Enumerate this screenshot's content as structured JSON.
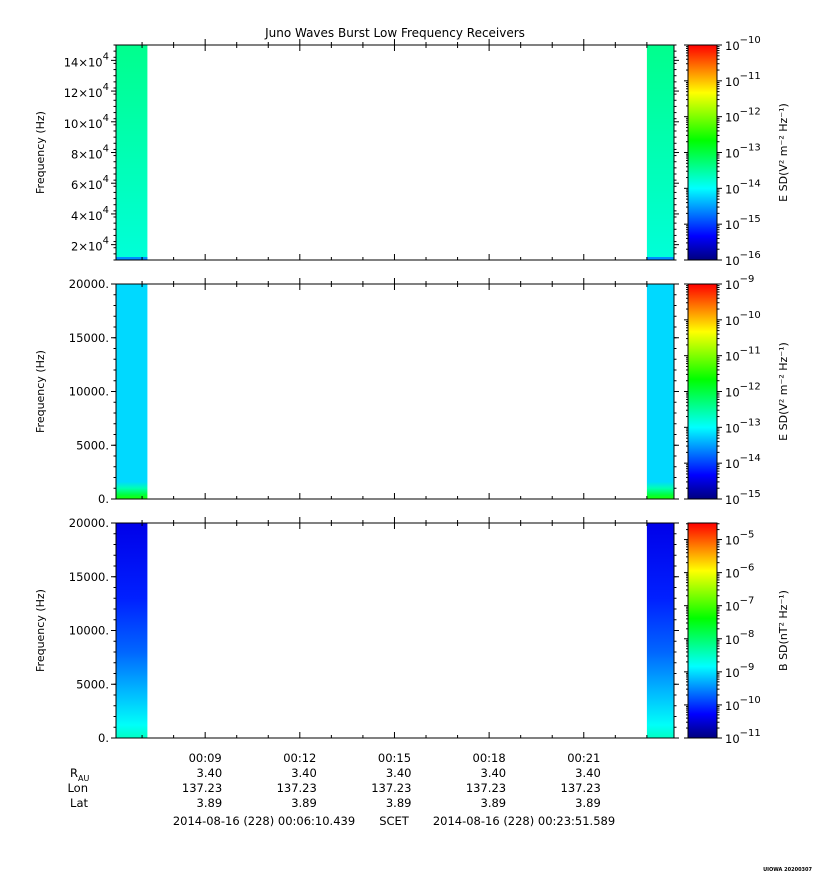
{
  "chart_data": [
    {
      "type": "heatmap",
      "title": "Juno Waves Burst Low Frequency Receivers",
      "ylabel": "Frequency (Hz)",
      "ylim": [
        10000,
        150000
      ],
      "yticks": [
        {
          "value": 20000,
          "mant": "2×10",
          "exp": "4"
        },
        {
          "value": 40000,
          "mant": "4×10",
          "exp": "4"
        },
        {
          "value": 60000,
          "mant": "6×10",
          "exp": "4"
        },
        {
          "value": 80000,
          "mant": "8×10",
          "exp": "4"
        },
        {
          "value": 100000,
          "mant": "10×10",
          "exp": "4"
        },
        {
          "value": 120000,
          "mant": "12×10",
          "exp": "4"
        },
        {
          "value": 140000,
          "mant": "14×10",
          "exp": "4"
        }
      ],
      "colorbar": {
        "label": "E SD(V² m⁻² Hz⁻¹)",
        "scale": "log",
        "range_exp": [
          -16,
          -10
        ],
        "ticks": [
          -16,
          -15,
          -14,
          -13,
          -12,
          -11,
          -10
        ]
      },
      "data_blocks": [
        {
          "start": "00:06:10",
          "end": "00:07:10",
          "typical_exp": -13.4
        },
        {
          "start": "00:23:00",
          "end": "00:23:51",
          "typical_exp": -13.4
        }
      ]
    },
    {
      "type": "heatmap",
      "ylabel": "Frequency (Hz)",
      "ylim": [
        0,
        20000
      ],
      "yticks": [
        {
          "value": 0,
          "label": "0."
        },
        {
          "value": 5000,
          "label": "5000."
        },
        {
          "value": 10000,
          "label": "10000."
        },
        {
          "value": 15000,
          "label": "15000."
        },
        {
          "value": 20000,
          "label": "20000."
        }
      ],
      "colorbar": {
        "label": "E SD(V² m⁻² Hz⁻¹)",
        "scale": "log",
        "range_exp": [
          -15,
          -9
        ],
        "ticks": [
          -15,
          -14,
          -13,
          -12,
          -11,
          -10,
          -9
        ]
      },
      "data_blocks": [
        {
          "start": "00:06:10",
          "end": "00:07:10",
          "typical_exp": -13.2,
          "low_freq_enhancement_exp": -12.0
        },
        {
          "start": "00:23:00",
          "end": "00:23:51",
          "typical_exp": -13.2,
          "low_freq_enhancement_exp": -12.0
        }
      ]
    },
    {
      "type": "heatmap",
      "ylabel": "Frequency (Hz)",
      "ylim": [
        0,
        20000
      ],
      "yticks": [
        {
          "value": 0,
          "label": "0."
        },
        {
          "value": 5000,
          "label": "5000."
        },
        {
          "value": 10000,
          "label": "10000."
        },
        {
          "value": 15000,
          "label": "15000."
        },
        {
          "value": 20000,
          "label": "20000."
        }
      ],
      "colorbar": {
        "label": "B SD(nT² Hz⁻¹)",
        "scale": "log",
        "range_exp": [
          -11,
          -4.5
        ],
        "ticks": [
          -11,
          -10,
          -9,
          -8,
          -7,
          -6,
          -5
        ]
      },
      "data_blocks": [
        {
          "start": "00:06:10",
          "end": "00:07:10",
          "typical_exp": -10.4,
          "low_freq_enhancement_exp": -8.5
        },
        {
          "start": "00:23:00",
          "end": "00:23:51",
          "typical_exp": -10.4,
          "low_freq_enhancement_exp": -8.5
        }
      ]
    }
  ],
  "x_axis": {
    "range": [
      "00:06:10.439",
      "00:23:51.589"
    ],
    "major_ticks": [
      "00:09",
      "00:12",
      "00:15",
      "00:18",
      "00:21"
    ]
  },
  "ephemeris": {
    "rows": [
      {
        "label": "R",
        "sub": "AU",
        "values": [
          "3.40",
          "3.40",
          "3.40",
          "3.40",
          "3.40"
        ]
      },
      {
        "label": "Lon",
        "sub": "",
        "values": [
          "137.23",
          "137.23",
          "137.23",
          "137.23",
          "137.23"
        ]
      },
      {
        "label": "Lat",
        "sub": "",
        "values": [
          "3.89",
          "3.89",
          "3.89",
          "3.89",
          "3.89"
        ]
      }
    ]
  },
  "time_range": {
    "start": "2014-08-16 (228) 00:06:10.439",
    "label": "SCET",
    "end": "2014-08-16 (228) 00:23:51.589"
  },
  "stamp": "UIOWA 20200307"
}
